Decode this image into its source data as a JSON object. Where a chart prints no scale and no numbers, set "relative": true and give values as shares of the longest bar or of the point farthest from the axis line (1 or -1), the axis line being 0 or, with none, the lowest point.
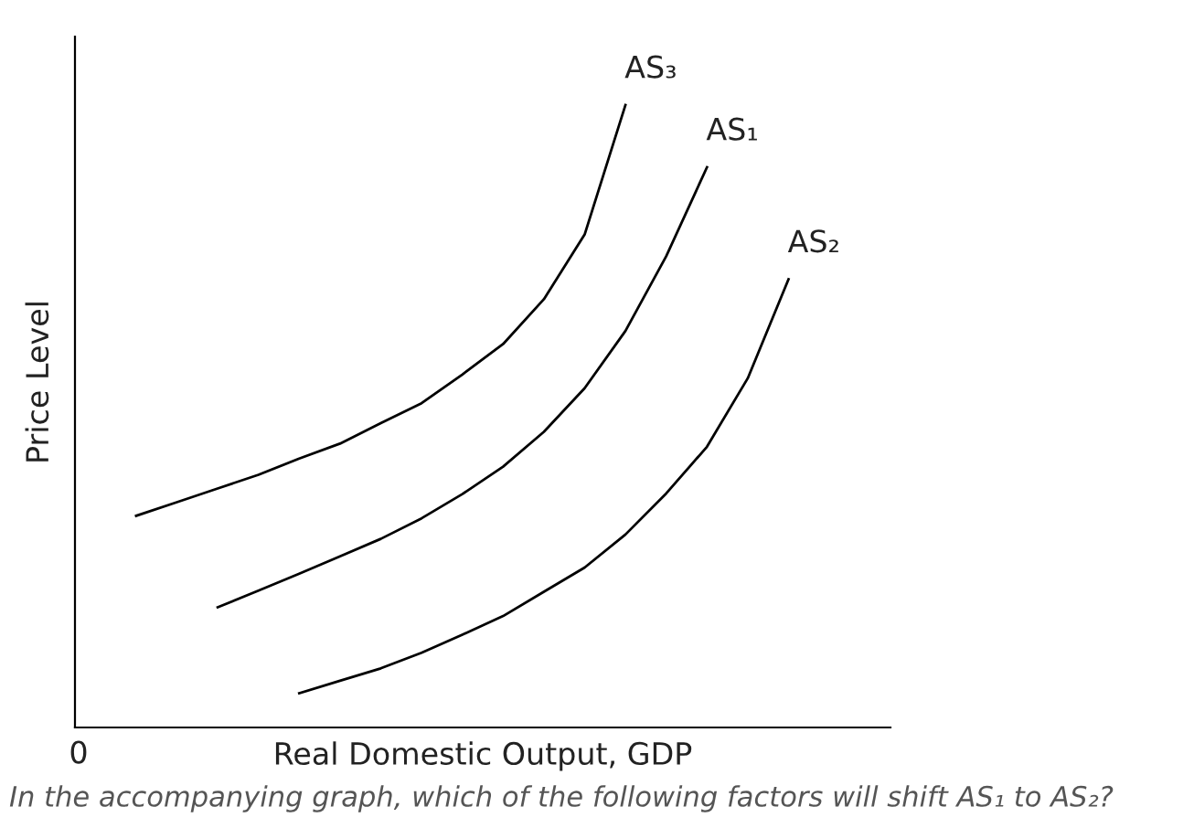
{
  "chart_data": {
    "type": "line",
    "relative": true,
    "xlabel": "Real Domestic Output, GDP",
    "ylabel": "Price Level",
    "marker": "none",
    "line_style": "solid",
    "categories": [
      null,
      null,
      null,
      null,
      null,
      null,
      null,
      null,
      null,
      null,
      null,
      null,
      null,
      null,
      null,
      null,
      null,
      null,
      null,
      null
    ],
    "series": [
      {
        "name": "AS₃",
        "color": "#000000",
        "values": [
          null,
          0.34,
          0.362,
          0.384,
          0.406,
          0.432,
          0.456,
          0.489,
          0.521,
          0.567,
          0.616,
          0.688,
          0.792,
          1,
          null,
          null,
          null,
          null,
          null,
          null
        ]
      },
      {
        "name": "AS₁",
        "color": "#000000",
        "values": [
          null,
          null,
          null,
          0.193,
          0.22,
          0.247,
          0.275,
          0.303,
          0.336,
          0.375,
          0.419,
          0.475,
          0.545,
          0.637,
          0.757,
          0.9,
          null,
          null,
          null,
          null
        ]
      },
      {
        "name": "AS₂",
        "color": "#000000",
        "values": [
          null,
          null,
          null,
          null,
          null,
          0.055,
          0.075,
          0.095,
          0.12,
          0.149,
          0.179,
          0.218,
          0.257,
          0.31,
          0.376,
          0.451,
          0.561,
          0.72,
          null,
          null
        ]
      }
    ],
    "annotations": [
      "0",
      "In the accompanying graph, which of the following factors will shift AS₁ to AS₂?"
    ]
  }
}
